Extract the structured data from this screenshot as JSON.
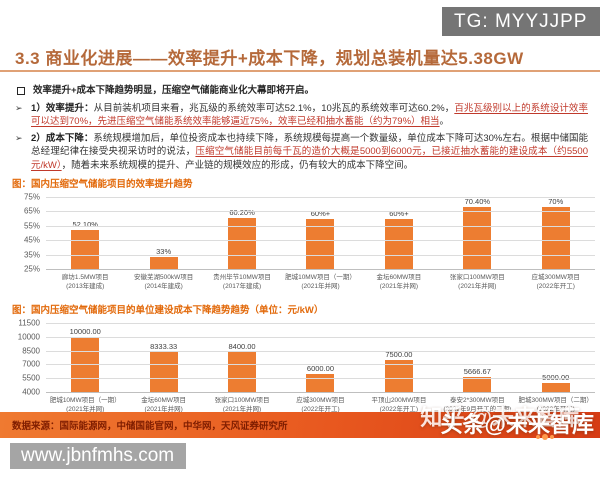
{
  "header": {
    "tg_badge": "TG: MYYJJPP",
    "title": "3.3 商业化进展——效率提升+成本下降，规划总装机量达5.38GW"
  },
  "bullets": {
    "marker": "➢",
    "lead": "效率提升+成本下降趋势明显，压缩空气储能商业化大幕即将开启。",
    "item1_runs": [
      {
        "text": "1）效率提升：",
        "style": "bold"
      },
      {
        "text": "从目前装机项目来看，兆瓦级的系统效率可达52.1%，10兆瓦的系统效率可达60.2%，",
        "style": "normal"
      },
      {
        "text": "百兆瓦级别以上的系统设计效率可以达到70%，先进压缩空气储能系统效率能够逼近75%，效率已经和抽水蓄能（约为79%）相当",
        "style": "red"
      },
      {
        "text": "。",
        "style": "normal"
      }
    ],
    "item2_runs": [
      {
        "text": "2）成本下降：",
        "style": "bold"
      },
      {
        "text": "系统规模增加后，单位投资成本也持续下降，系统规模每提高一个数量级，单位成本下降可达30%左右。根据中储国能总经理纪律在接受央视采访时的说法，",
        "style": "normal"
      },
      {
        "text": "压缩空气储能目前每千瓦的造价大概是5000到6000元，已接近抽水蓄能的建设成本（约5500元/kW）",
        "style": "red"
      },
      {
        "text": "，随着未来系统规模的提升、产业链的规模效应的形成，仍有较大的成本下降空间。",
        "style": "normal"
      }
    ]
  },
  "chart_data": [
    {
      "type": "bar",
      "title": "图：国内压缩空气储能项目的效率提升趋势",
      "bar_color": "#ED7D31",
      "ylim": [
        25,
        75
      ],
      "yticks": [
        "75%",
        "65%",
        "55%",
        "45%",
        "35%",
        "25%"
      ],
      "values": [
        52.1,
        33,
        60.2,
        60,
        60,
        70.4,
        70
      ],
      "labels": [
        "52.10%",
        "33%",
        "60.20%",
        "60%+",
        "60%+",
        "70.40%",
        "70%"
      ],
      "categories": [
        {
          "name": "廊坊1.5MW项目",
          "date": "(2013年建成)"
        },
        {
          "name": "安徽芜湖500kW项目",
          "date": "(2014年建成)"
        },
        {
          "name": "贵州毕节10MW项目",
          "date": "(2017年建成)"
        },
        {
          "name": "肥城10MW项目（一期）",
          "date": "(2021年并网)"
        },
        {
          "name": "金坛60MW项目",
          "date": "(2021年并网)"
        },
        {
          "name": "张家口100MW项目",
          "date": "(2021年并网)"
        },
        {
          "name": "应城300MW项目",
          "date": "(2022年开工)"
        }
      ]
    },
    {
      "type": "bar",
      "title": "图：国内压缩空气储能项目的单位建设成本下降趋势趋势（单位：元/kW）",
      "bar_color": "#ED7D31",
      "ylim": [
        4000,
        11500
      ],
      "yticks": [
        "11500",
        "10000",
        "8500",
        "7000",
        "5500",
        "4000"
      ],
      "values": [
        10000,
        8333.33,
        8400,
        6000,
        7500,
        5666.67,
        5000
      ],
      "labels": [
        "10000.00",
        "8333.33",
        "8400.00",
        "6000.00",
        "7500.00",
        "5666.67",
        "5000.00"
      ],
      "categories": [
        {
          "name": "肥城10MW项目（一期）",
          "date": "(2021年并网)"
        },
        {
          "name": "金坛60MW项目",
          "date": "(2021年并网)"
        },
        {
          "name": "张家口100MW项目",
          "date": "(2021年并网)"
        },
        {
          "name": "应城300MW项目",
          "date": "(2022年开工)"
        },
        {
          "name": "平顶山200MW项目",
          "date": "(2022年开工)"
        },
        {
          "name": "泰安2*300MW项目",
          "date": "(2022年9月开工的二期)"
        },
        {
          "name": "肥城300MW项目（二期）",
          "date": "(2022年开工)"
        }
      ]
    }
  ],
  "footer": {
    "source": "数据来源：国际能源网，中储国能官网，中华网，天风证券研究所",
    "watermark_back": "知乎 @未来智库",
    "watermark_front": "头条@未来智库",
    "url_badge": "www.jbnfmhs.com"
  }
}
